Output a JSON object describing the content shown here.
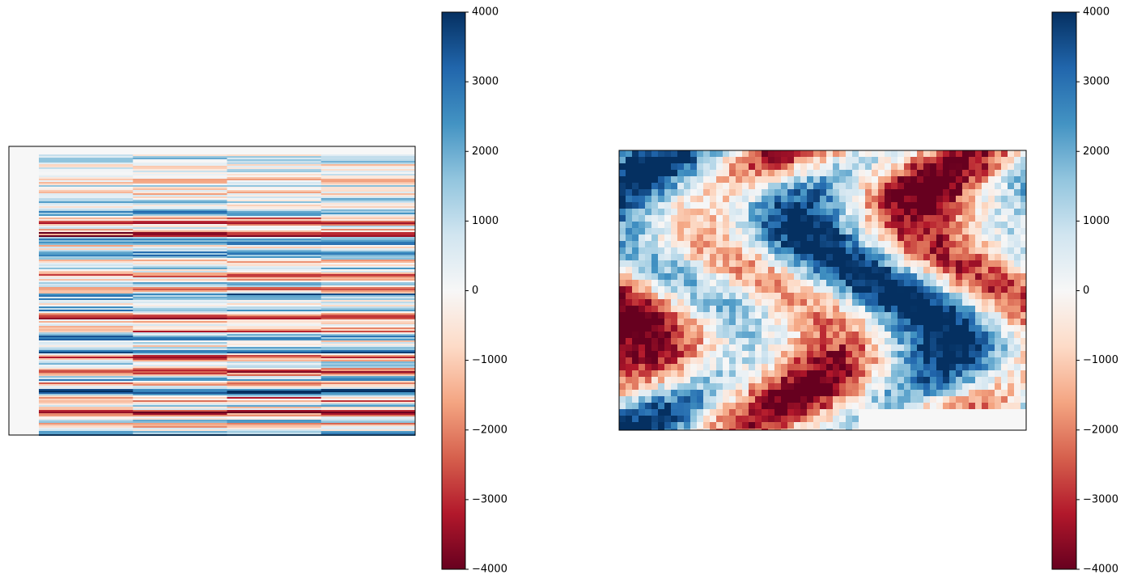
{
  "chart_data": [
    {
      "type": "image",
      "colormap": "RdBu",
      "clim": [
        -4000,
        4000
      ],
      "cticks": [
        {
          "value": -4000,
          "label": "−4000"
        },
        {
          "value": -3000,
          "label": "−3000"
        },
        {
          "value": -2000,
          "label": "−2000"
        },
        {
          "value": -1000,
          "label": "−1000"
        },
        0,
        1000,
        2000,
        3000,
        4000
      ]
    },
    {
      "type": "image",
      "colormap": "RdBu",
      "clim": [
        -4000,
        4000
      ],
      "cticks": [
        {
          "value": -4000,
          "label": "−4000"
        },
        {
          "value": -3000,
          "label": "−3000"
        },
        {
          "value": -2000,
          "label": "−2000"
        },
        {
          "value": -1000,
          "label": "−1000"
        },
        0,
        1000,
        2000,
        3000,
        4000
      ]
    }
  ]
}
